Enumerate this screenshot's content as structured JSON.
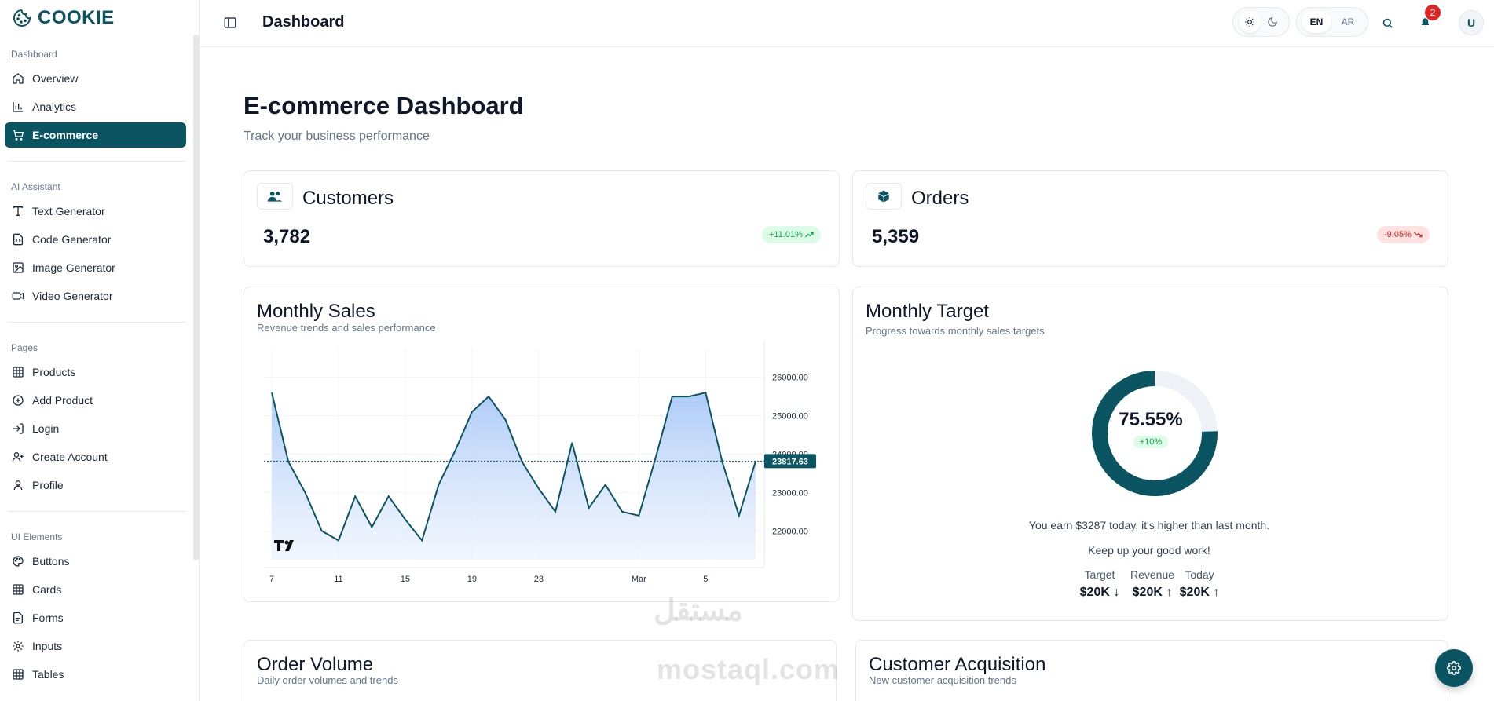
{
  "app": {
    "name": "COOKIE"
  },
  "sidebar": {
    "sections": [
      {
        "label": "Dashboard",
        "items": [
          "Overview",
          "Analytics",
          "E-commerce"
        ]
      },
      {
        "label": "AI Assistant",
        "items": [
          "Text Generator",
          "Code Generator",
          "Image Generator",
          "Video Generator"
        ]
      },
      {
        "label": "Pages",
        "items": [
          "Products",
          "Add Product",
          "Login",
          "Create Account",
          "Profile"
        ]
      },
      {
        "label": "UI Elements",
        "items": [
          "Buttons",
          "Cards",
          "Forms",
          "Inputs",
          "Tables"
        ]
      }
    ],
    "active_item": "E-commerce"
  },
  "header": {
    "title": "Dashboard",
    "lang": [
      "EN",
      "AR"
    ],
    "active_lang": "EN",
    "notifications_count": "2",
    "avatar_initial": "U"
  },
  "page": {
    "title": "E-commerce Dashboard",
    "subtitle": "Track your business performance"
  },
  "stats": {
    "customers": {
      "label": "Customers",
      "value": "3,782",
      "change": "+11.01%"
    },
    "orders": {
      "label": "Orders",
      "value": "5,359",
      "change": "-9.05%"
    }
  },
  "monthly_sales": {
    "title": "Monthly Sales",
    "subtitle": "Revenue trends and sales performance",
    "chart_data": {
      "type": "area",
      "x": [
        0,
        1,
        2,
        3,
        4,
        5,
        6,
        7,
        8,
        9,
        10,
        11,
        12,
        13,
        14,
        15,
        16,
        17,
        18,
        19,
        20,
        21,
        22,
        23,
        24,
        25,
        26,
        27,
        28,
        29
      ],
      "values": [
        25600,
        23800,
        23000,
        22000,
        21750,
        22900,
        22100,
        22900,
        22300,
        21750,
        23200,
        24100,
        25100,
        25500,
        24900,
        23800,
        23100,
        22500,
        24300,
        22600,
        23200,
        22500,
        22400,
        23900,
        25500,
        25500,
        25600,
        23800,
        22400,
        23817.63
      ],
      "x_tick_labels": [
        "7",
        "11",
        "15",
        "19",
        "23",
        "Mar",
        "5"
      ],
      "y_tick_labels": [
        "26000.00",
        "25000.00",
        "24000.00",
        "23000.00",
        "22000.00"
      ],
      "current_value_label": "23817.63",
      "ylim": [
        21250,
        26750
      ]
    }
  },
  "monthly_target": {
    "title": "Monthly Target",
    "subtitle": "Progress towards monthly sales targets",
    "percent_label": "75.55%",
    "percent_value": 75.55,
    "delta": "+10%",
    "message1": "You earn $3287 today, it's higher than last month.",
    "message2": "Keep up your good work!",
    "metrics": [
      {
        "label": "Target",
        "value": "$20K",
        "arrow": "↓"
      },
      {
        "label": "Revenue",
        "value": "$20K",
        "arrow": "↑"
      },
      {
        "label": "Today",
        "value": "$20K",
        "arrow": "↑"
      }
    ]
  },
  "order_volume": {
    "title": "Order Volume",
    "subtitle": "Daily order volumes and trends"
  },
  "customer_acquisition": {
    "title": "Customer Acquisition",
    "subtitle": "New customer acquisition trends"
  },
  "watermark": {
    "arabic": "مستقل",
    "latin": "mostaql.com"
  },
  "colors": {
    "brand": "#0b5562",
    "up": "#16a34a",
    "down": "#dc2626"
  }
}
